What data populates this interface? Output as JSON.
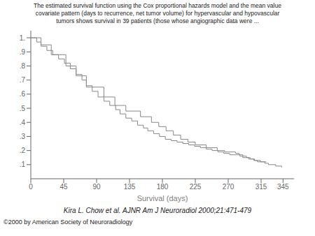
{
  "chart_data": {
    "type": "step",
    "title": "The estimated survival function using the Cox proportional hazards model and the mean value\ncovariate pattern (days to recurrence, net tumor volume) for hypervascular and hypovascular\ntumors shows survival in 39 patients (those whose angiographic data were ...",
    "x_label": "Survival (days)",
    "annotations": [
      "Kira L. Chow et al. AJNR Am J Neuroradiol 2000;21:471-479",
      "©2000 by American Society of Neuroradiology"
    ],
    "xlim": [
      0,
      360
    ],
    "ylim": [
      0.0,
      1.05
    ],
    "xticks": [
      0,
      45,
      90,
      135,
      180,
      225,
      270,
      315,
      345
    ],
    "yticks": [
      {
        "value": 0.1,
        "label": ".1"
      },
      {
        "value": 0.2,
        "label": ".2"
      },
      {
        "value": 0.3,
        "label": ".3"
      },
      {
        "value": 0.4,
        "label": ".4"
      },
      {
        "value": 0.5,
        "label": ".5"
      },
      {
        "value": 0.6,
        "label": ".6"
      },
      {
        "value": 0.7,
        "label": ".7"
      },
      {
        "value": 0.8,
        "label": ".8"
      },
      {
        "value": 0.9,
        "label": ".9"
      },
      {
        "value": 1.0,
        "label": "1."
      }
    ],
    "grid": false,
    "series": [
      {
        "color": "#888888",
        "x": [
          0,
          8,
          14,
          22,
          30,
          38,
          46,
          54,
          62,
          70,
          76,
          84,
          92,
          100,
          108,
          116,
          122,
          130,
          138,
          146,
          154,
          160,
          168,
          176,
          184,
          192,
          200,
          208,
          216,
          224,
          232,
          240,
          248,
          256,
          264,
          272,
          280,
          286,
          290,
          294,
          298,
          302,
          306,
          310,
          314,
          318,
          322
        ],
        "values": [
          1.0,
          0.97,
          0.94,
          0.91,
          0.88,
          0.85,
          0.82,
          0.78,
          0.74,
          0.7,
          0.66,
          0.62,
          0.58,
          0.55,
          0.52,
          0.49,
          0.46,
          0.43,
          0.41,
          0.38,
          0.36,
          0.34,
          0.32,
          0.3,
          0.28,
          0.27,
          0.26,
          0.25,
          0.24,
          0.23,
          0.22,
          0.21,
          0.2,
          0.19,
          0.18,
          0.17,
          0.17,
          0.16,
          0.15,
          0.15,
          0.14,
          0.14,
          0.13,
          0.13,
          0.12,
          0.12,
          0.12
        ]
      },
      {
        "color": "#888888",
        "x": [
          0,
          14,
          28,
          48,
          62,
          76,
          100,
          115,
          130,
          150,
          165,
          175,
          185,
          195,
          205,
          215,
          225,
          240,
          255,
          265,
          280,
          285,
          290,
          295,
          300,
          305,
          310,
          315,
          320,
          325,
          330,
          335,
          340,
          343
        ],
        "values": [
          1.0,
          0.95,
          0.88,
          0.8,
          0.73,
          0.65,
          0.58,
          0.52,
          0.48,
          0.44,
          0.4,
          0.37,
          0.34,
          0.31,
          0.28,
          0.26,
          0.24,
          0.22,
          0.2,
          0.19,
          0.18,
          0.17,
          0.16,
          0.15,
          0.14,
          0.13,
          0.12,
          0.12,
          0.11,
          0.1,
          0.1,
          0.09,
          0.09,
          0.08
        ]
      }
    ]
  }
}
